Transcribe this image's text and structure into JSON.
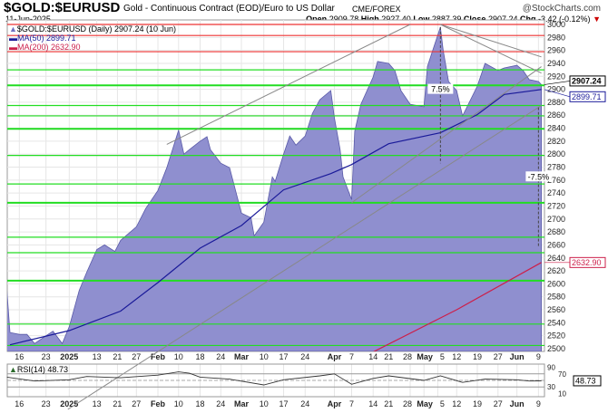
{
  "header": {
    "symbol": "$GOLD:$EURUSD",
    "description": "Gold - Continuous Contract (EOD)/Euro to US Dollar",
    "exchange": "CME/FOREX",
    "brand": "@StockCharts.com",
    "date": "11-Jun-2025",
    "open_label": "Open",
    "open": "2909.78",
    "high_label": "High",
    "high": "2927.40",
    "low_label": "Low",
    "low": "2887.39",
    "close_label": "Close",
    "close": "2907.24",
    "chg_label": "Chg",
    "chg": "-3.42 (-0.12%)",
    "chg_icon": "triangle-down-icon"
  },
  "legend": {
    "price": "$GOLD:$EURUSD (Daily) 2907.24 (10 Jun)",
    "ma50": "MA(50) 2899.71",
    "ma200": "MA(200) 2632.90"
  },
  "colors": {
    "area": "#8f8fcf",
    "area_line": "#5a5aa8",
    "ma50": "#1a1a99",
    "ma200": "#cc1f4a",
    "support": "#22dd22",
    "resistance": "#ee3333",
    "trend": "#888888"
  },
  "chart_data": [
    {
      "type": "area",
      "ylim": [
        2500,
        3000
      ],
      "yticks": [
        2500,
        2520,
        2540,
        2560,
        2580,
        2600,
        2620,
        2640,
        2660,
        2680,
        2700,
        2720,
        2740,
        2760,
        2780,
        2800,
        2820,
        2840,
        2860,
        2880,
        2900,
        2920,
        2940,
        2960,
        2980,
        3000
      ],
      "xticks": [
        {
          "date": "2024-12-16",
          "label": "16"
        },
        {
          "date": "2024-12-23",
          "label": "23"
        },
        {
          "date": "2025-01-02",
          "label": "2025",
          "bold": true
        },
        {
          "date": "2025-01-13",
          "label": "13"
        },
        {
          "date": "2025-01-21",
          "label": "21"
        },
        {
          "date": "2025-01-27",
          "label": "27"
        },
        {
          "date": "2025-02-03",
          "label": "Feb",
          "bold": true
        },
        {
          "date": "2025-02-10",
          "label": "10"
        },
        {
          "date": "2025-02-18",
          "label": "18"
        },
        {
          "date": "2025-02-24",
          "label": "24"
        },
        {
          "date": "2025-03-03",
          "label": "Mar",
          "bold": true
        },
        {
          "date": "2025-03-10",
          "label": "10"
        },
        {
          "date": "2025-03-17",
          "label": "17"
        },
        {
          "date": "2025-03-24",
          "label": "24"
        },
        {
          "date": "2025-04-01",
          "label": "Apr",
          "bold": true
        },
        {
          "date": "2025-04-07",
          "label": "7"
        },
        {
          "date": "2025-04-14",
          "label": "14"
        },
        {
          "date": "2025-04-21",
          "label": "21"
        },
        {
          "date": "2025-04-28",
          "label": "28"
        },
        {
          "date": "2025-05-01",
          "label": "May",
          "bold": true
        },
        {
          "date": "2025-05-05",
          "label": "5"
        },
        {
          "date": "2025-05-12",
          "label": "12"
        },
        {
          "date": "2025-05-19",
          "label": "19"
        },
        {
          "date": "2025-05-27",
          "label": "27"
        },
        {
          "date": "2025-06-02",
          "label": "Jun",
          "bold": true
        },
        {
          "date": "2025-06-09",
          "label": "9"
        }
      ],
      "series": [
        {
          "name": "$GOLD:$EURUSD (Daily)",
          "points": [
            [
              "2024-12-12",
              2590
            ],
            [
              "2024-12-13",
              2525
            ],
            [
              "2024-12-16",
              2522
            ],
            [
              "2024-12-18",
              2522
            ],
            [
              "2024-12-20",
              2508
            ],
            [
              "2024-12-23",
              2520
            ],
            [
              "2024-12-26",
              2527
            ],
            [
              "2024-12-30",
              2508
            ],
            [
              "2025-01-02",
              2534
            ],
            [
              "2025-01-06",
              2590
            ],
            [
              "2025-01-09",
              2618
            ],
            [
              "2025-01-13",
              2653
            ],
            [
              "2025-01-16",
              2660
            ],
            [
              "2025-01-20",
              2650
            ],
            [
              "2025-01-22",
              2667
            ],
            [
              "2025-01-27",
              2688
            ],
            [
              "2025-01-30",
              2716
            ],
            [
              "2025-02-03",
              2744
            ],
            [
              "2025-02-06",
              2779
            ],
            [
              "2025-02-10",
              2837
            ],
            [
              "2025-02-12",
              2800
            ],
            [
              "2025-02-14",
              2807
            ],
            [
              "2025-02-18",
              2820
            ],
            [
              "2025-02-20",
              2827
            ],
            [
              "2025-02-21",
              2807
            ],
            [
              "2025-02-24",
              2786
            ],
            [
              "2025-02-27",
              2779
            ],
            [
              "2025-03-03",
              2709
            ],
            [
              "2025-03-06",
              2702
            ],
            [
              "2025-03-07",
              2674
            ],
            [
              "2025-03-10",
              2695
            ],
            [
              "2025-03-13",
              2765
            ],
            [
              "2025-03-14",
              2758
            ],
            [
              "2025-03-17",
              2800
            ],
            [
              "2025-03-19",
              2828
            ],
            [
              "2025-03-21",
              2814
            ],
            [
              "2025-03-24",
              2828
            ],
            [
              "2025-03-26",
              2863
            ],
            [
              "2025-03-28",
              2884
            ],
            [
              "2025-03-31",
              2898
            ],
            [
              "2025-04-01",
              2856
            ],
            [
              "2025-04-03",
              2807
            ],
            [
              "2025-04-04",
              2765
            ],
            [
              "2025-04-07",
              2730
            ],
            [
              "2025-04-08",
              2835
            ],
            [
              "2025-04-10",
              2877
            ],
            [
              "2025-04-14",
              2919
            ],
            [
              "2025-04-16",
              2943
            ],
            [
              "2025-04-21",
              2940
            ],
            [
              "2025-04-23",
              2929
            ],
            [
              "2025-04-25",
              2898
            ],
            [
              "2025-04-28",
              2877
            ],
            [
              "2025-05-01",
              2873
            ],
            [
              "2025-05-02",
              2935
            ],
            [
              "2025-05-06",
              2996
            ],
            [
              "2025-05-07",
              2961
            ],
            [
              "2025-05-09",
              2912
            ],
            [
              "2025-05-12",
              2898
            ],
            [
              "2025-05-14",
              2859
            ],
            [
              "2025-05-19",
              2905
            ],
            [
              "2025-05-22",
              2940
            ],
            [
              "2025-05-27",
              2929
            ],
            [
              "2025-05-29",
              2933
            ],
            [
              "2025-06-02",
              2937
            ],
            [
              "2025-06-04",
              2929
            ],
            [
              "2025-06-06",
              2915
            ],
            [
              "2025-06-09",
              2912
            ],
            [
              "2025-06-10",
              2907.24
            ]
          ]
        },
        {
          "name": "MA(50)",
          "points": [
            [
              "2024-12-13",
              2506
            ],
            [
              "2025-01-02",
              2528
            ],
            [
              "2025-01-22",
              2558
            ],
            [
              "2025-02-03",
              2602
            ],
            [
              "2025-02-18",
              2655
            ],
            [
              "2025-03-03",
              2690
            ],
            [
              "2025-03-17",
              2745
            ],
            [
              "2025-03-31",
              2770
            ],
            [
              "2025-04-07",
              2784
            ],
            [
              "2025-04-21",
              2816
            ],
            [
              "2025-05-06",
              2833
            ],
            [
              "2025-05-19",
              2861
            ],
            [
              "2025-05-29",
              2892
            ],
            [
              "2025-06-10",
              2899.71
            ]
          ]
        },
        {
          "name": "MA(200)",
          "points": [
            [
              "2025-04-14",
              2495
            ],
            [
              "2025-05-12",
              2560
            ],
            [
              "2025-06-10",
              2632.9
            ]
          ]
        }
      ],
      "horizontal_lines": {
        "resistance": [
          3000,
          2983,
          2958
        ],
        "support": [
          2930,
          2906,
          2875,
          2859,
          2839,
          2798,
          2754,
          2725,
          2672,
          2648,
          2605,
          2538,
          2505
        ]
      },
      "trend_lines": [
        [
          [
            "2025-02-06",
            2815
          ],
          [
            "2025-04-28",
            3000
          ]
        ],
        [
          [
            "2024-12-10",
            2340
          ],
          [
            "2025-06-10",
            2875
          ]
        ],
        [
          [
            "2025-04-07",
            2725
          ],
          [
            "2025-06-10",
            2935
          ]
        ],
        [
          [
            "2025-05-06",
            3000
          ],
          [
            "2025-06-10",
            2950
          ]
        ],
        [
          [
            "2025-05-06",
            3000
          ],
          [
            "2025-06-10",
            2925
          ]
        ]
      ],
      "annotations": [
        {
          "text": "7.5%",
          "date": "2025-05-06",
          "from": 2996,
          "to": 2786,
          "at": 2900
        },
        {
          "text": "-7.5%",
          "date": "2025-06-09",
          "from": 2872,
          "to": 2656,
          "at": 2765
        }
      ],
      "value_tags": [
        {
          "text": "2907.24",
          "value": 2907.24,
          "kind": "price"
        },
        {
          "text": "2899.71",
          "value": 2899.71,
          "kind": "ma50"
        },
        {
          "text": "2632.90",
          "value": 2632.9,
          "kind": "ma200"
        }
      ]
    },
    {
      "type": "line",
      "title": "RSI(14) 48.73",
      "ylim": [
        0,
        100
      ],
      "yticks": [
        90,
        70,
        30,
        10
      ],
      "series": [
        {
          "name": "RSI(14)",
          "points": [
            [
              "2024-12-12",
              60
            ],
            [
              "2024-12-20",
              48
            ],
            [
              "2025-01-02",
              52
            ],
            [
              "2025-01-09",
              62
            ],
            [
              "2025-01-22",
              58
            ],
            [
              "2025-02-03",
              66
            ],
            [
              "2025-02-10",
              76
            ],
            [
              "2025-02-14",
              72
            ],
            [
              "2025-02-18",
              60
            ],
            [
              "2025-02-27",
              54
            ],
            [
              "2025-03-10",
              36
            ],
            [
              "2025-03-17",
              52
            ],
            [
              "2025-03-28",
              64
            ],
            [
              "2025-04-01",
              70
            ],
            [
              "2025-04-07",
              38
            ],
            [
              "2025-04-14",
              56
            ],
            [
              "2025-04-21",
              64
            ],
            [
              "2025-05-01",
              50
            ],
            [
              "2025-05-06",
              64
            ],
            [
              "2025-05-14",
              44
            ],
            [
              "2025-05-22",
              54
            ],
            [
              "2025-06-02",
              52
            ],
            [
              "2025-06-06",
              48
            ],
            [
              "2025-06-10",
              48.73
            ]
          ]
        }
      ],
      "value_tag": "48.73"
    }
  ]
}
